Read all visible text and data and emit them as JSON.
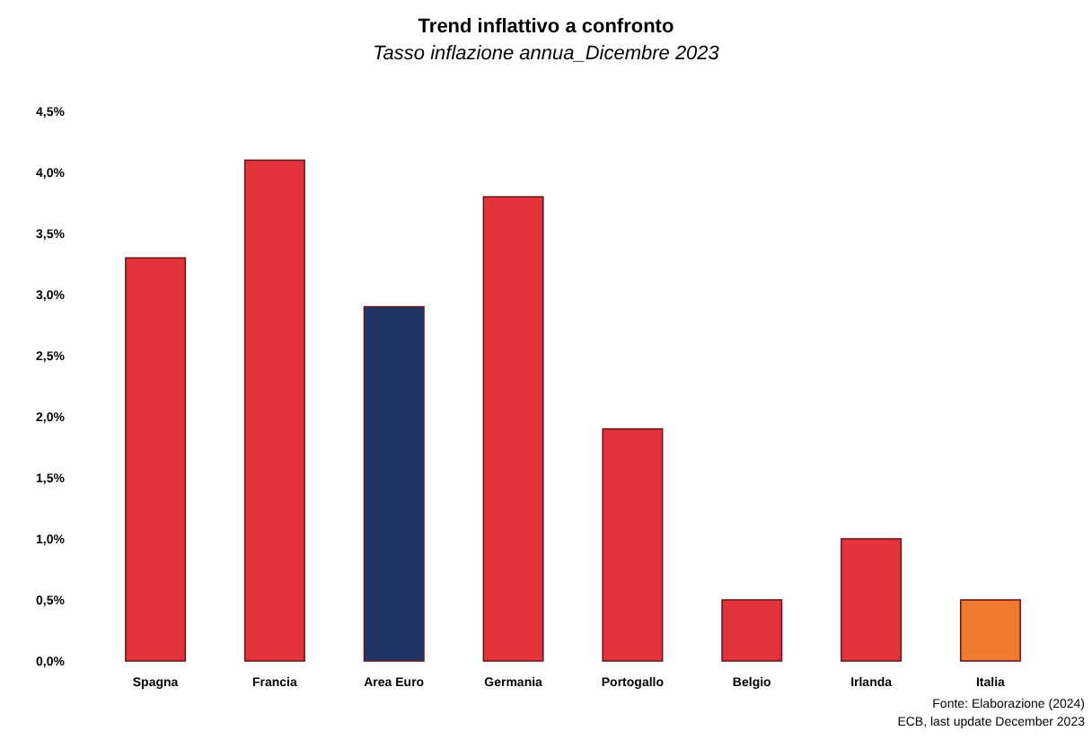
{
  "chart_data": {
    "type": "bar",
    "title": "Trend inflattivo a confronto",
    "subtitle": "Tasso inflazione annua_Dicembre 2023",
    "categories": [
      "Spagna",
      "Francia",
      "Area Euro",
      "Germania",
      "Portogallo",
      "Belgio",
      "Irlanda",
      "Italia"
    ],
    "values": [
      3.3,
      4.1,
      2.9,
      3.8,
      1.9,
      0.5,
      1.0,
      0.5
    ],
    "colors": [
      "#e3323a",
      "#e3323a",
      "#1f3566",
      "#e3323a",
      "#e3323a",
      "#e3323a",
      "#e3323a",
      "#f07a2e"
    ],
    "ylim": [
      0,
      4.5
    ],
    "yticks": [
      {
        "value": 0,
        "label": "0,0%"
      },
      {
        "value": 0.5,
        "label": "0,5%"
      },
      {
        "value": 1,
        "label": "1,0%"
      },
      {
        "value": 1.5,
        "label": "1,5%"
      },
      {
        "value": 2,
        "label": "2,0%"
      },
      {
        "value": 2.5,
        "label": "2,5%"
      },
      {
        "value": 3,
        "label": "3,0%"
      },
      {
        "value": 3.5,
        "label": "3,5%"
      },
      {
        "value": 4,
        "label": "4,0%"
      },
      {
        "value": 4.5,
        "label": "4,5%"
      }
    ],
    "annotations": [
      "Fonte: Elaborazione (2024)",
      "ECB, last update December 2023"
    ]
  }
}
